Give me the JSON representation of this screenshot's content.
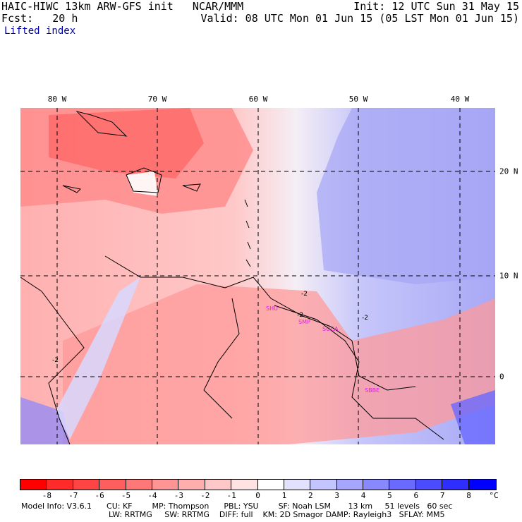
{
  "header": {
    "line1_left": "HAIC-HIWC 13km ARW-GFS init   NCAR/MMM",
    "line1_right": "Init: 12 UTC Sun 31 May 15",
    "line2_left": "Fcst:   20 h",
    "line2_right": "Valid: 08 UTC Mon 01 Jun 15 (05 LST Mon 01 Jun 15)",
    "field": "Lifted index"
  },
  "map": {
    "lon_labels": [
      "80 W",
      "70 W",
      "60 W",
      "50 W",
      "40 W"
    ],
    "lat_labels": [
      "20 N",
      "10 N",
      "0"
    ],
    "contour_labels": [
      "-2",
      "-2",
      "-2",
      "-2"
    ],
    "sites": [
      "SHU",
      "SMP",
      "SOCA",
      "SBBE"
    ]
  },
  "colorbar": {
    "labels": [
      "-8",
      "-7",
      "-6",
      "-5",
      "-4",
      "-3",
      "-2",
      "-1",
      "0",
      "1",
      "2",
      "3",
      "4",
      "5",
      "6",
      "7",
      "8"
    ],
    "unit": "°C",
    "colors": [
      "#ff0000",
      "#ff2a2a",
      "#ff4444",
      "#ff5e5e",
      "#ff7878",
      "#ff9494",
      "#ffaeae",
      "#ffc8c8",
      "#ffe2e2",
      "#ffffff",
      "#e2e2ff",
      "#c4c4ff",
      "#a6a6ff",
      "#8888ff",
      "#6a6aff",
      "#4c4cff",
      "#2e2eff",
      "#0000ff"
    ]
  },
  "model_info": {
    "line1": "Model Info: V3.6.1      CU: KF        MP: Thompson      PBL: YSU        SF: Noah LSM       13 km     51 levels   60 sec",
    "line2": "LW: RRTMG     SW: RRTMG    DIFF: full    KM: 2D Smagor DAMP: Rayleigh3   SFLAY: MM5"
  }
}
